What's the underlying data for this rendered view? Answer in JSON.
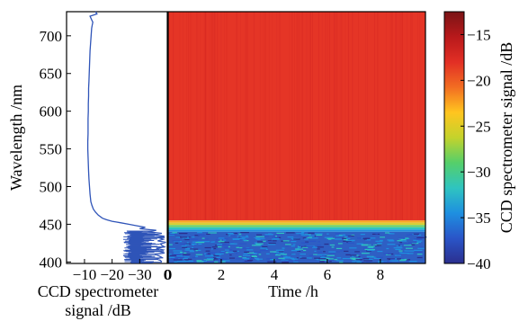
{
  "chart_data": [
    {
      "type": "line",
      "orientation": "vertical-spectrum",
      "xlabel_lines": [
        "CCD spectrometer",
        "signal /dB"
      ],
      "ylabel": "Wavelength /nm",
      "x_ticks": [
        "−10",
        "−20",
        "−30",
        "0"
      ],
      "x_tick_values": [
        -10,
        -20,
        -30,
        0
      ],
      "x_axis_reversed": true,
      "xlim": [
        -3.5,
        -40
      ],
      "y_ticks": [
        "400",
        "450",
        "500",
        "550",
        "600",
        "650",
        "700"
      ],
      "y_tick_values": [
        400,
        450,
        500,
        550,
        600,
        650,
        700
      ],
      "ylim": [
        398,
        732
      ],
      "grid": false,
      "line_color": "#2f54b8",
      "series": [
        {
          "wavelength": [
            732,
            729,
            726,
            722,
            718,
            714,
            710,
            700,
            690,
            680,
            670,
            660,
            650,
            640,
            630,
            620,
            610,
            600,
            590,
            580,
            570,
            560,
            550,
            540,
            530,
            520,
            510,
            500,
            490,
            480,
            475,
            470,
            466,
            462,
            458,
            456,
            454,
            452,
            450,
            448,
            446,
            444,
            442,
            440,
            438,
            436,
            434,
            432,
            430,
            428,
            426,
            424,
            422,
            420,
            418,
            416,
            414,
            412,
            410,
            408,
            406,
            404,
            402,
            400
          ],
          "signal": [
            -14,
            -14.5,
            -12,
            -12.5,
            -13,
            -12.8,
            -12.6,
            -12.4,
            -12.2,
            -12.0,
            -11.9,
            -11.8,
            -11.7,
            -11.6,
            -11.5,
            -11.5,
            -11.4,
            -11.4,
            -11.3,
            -11.3,
            -11.3,
            -11.2,
            -11.2,
            -11.3,
            -11.4,
            -11.5,
            -11.6,
            -11.8,
            -12.0,
            -12.3,
            -12.7,
            -13.2,
            -14.0,
            -15.0,
            -16.5,
            -18.0,
            -20.0,
            -23.0,
            -26.0,
            -29.0,
            -32.0,
            -30.0,
            -36.0,
            -33.0,
            -38.0,
            -35.0,
            -39.0,
            -37.0,
            -38.5,
            -36.5,
            -39.5,
            -37.5,
            -38.0,
            -39.0,
            -36.0,
            -38.5,
            -37.0,
            -39.0,
            -35.5,
            -37.0,
            -38.0,
            -36.0,
            -37.5,
            -38.0
          ]
        }
      ]
    },
    {
      "type": "heatmap",
      "xlabel": "Time /h",
      "x_ticks": [
        "0",
        "2",
        "4",
        "6",
        "8"
      ],
      "x_tick_values": [
        0,
        2,
        4,
        6,
        8
      ],
      "xlim": [
        0,
        9.7
      ],
      "ylim": [
        398,
        732
      ],
      "colorbar": {
        "label": "CCD spectrometer signal /dB",
        "ticks": [
          "−15",
          "−20",
          "−25",
          "−30",
          "−35",
          "−40"
        ],
        "tick_values": [
          -15,
          -20,
          -25,
          -30,
          -35,
          -40
        ],
        "range": [
          -40,
          -12.5
        ],
        "colors": [
          "#2b2f8e",
          "#2a55c8",
          "#1e8fe0",
          "#2fc4c0",
          "#55cf6a",
          "#c4d32c",
          "#ffc51f",
          "#f26d22",
          "#e22f25",
          "#b8191b",
          "#7a1416"
        ]
      },
      "bands": [
        {
          "wavelength_from": 732,
          "wavelength_to": 455,
          "signal": -13.5,
          "color": "#e53526"
        },
        {
          "wavelength_from": 455,
          "wavelength_to": 452,
          "signal": -20,
          "color": "#f7a623"
        },
        {
          "wavelength_from": 452,
          "wavelength_to": 449,
          "signal": -23,
          "color": "#d8cf35"
        },
        {
          "wavelength_from": 449,
          "wavelength_to": 446,
          "signal": -27,
          "color": "#6fd06a"
        },
        {
          "wavelength_from": 446,
          "wavelength_to": 443,
          "signal": -30,
          "color": "#2fc4c0"
        },
        {
          "wavelength_from": 443,
          "wavelength_to": 440,
          "signal": -33,
          "color": "#1f8fdf"
        },
        {
          "wavelength_from": 440,
          "wavelength_to": 398,
          "signal": -37,
          "color": "#2e5fc4"
        }
      ]
    }
  ]
}
